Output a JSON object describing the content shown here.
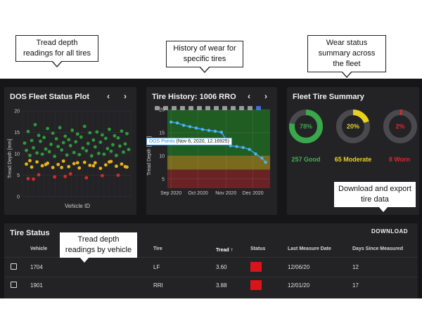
{
  "callouts": {
    "tread": "Tread depth readings for all tires",
    "history": "History of wear for specific tires",
    "summary": "Wear status summary across the fleet",
    "download": "Download and export tire data",
    "vehicle": "Tread depth readings by vehicle"
  },
  "fleet_plot": {
    "title": "DOS Fleet Status Plot",
    "prev": "‹",
    "next": "›",
    "ylabel": "Tread Depth [mm]",
    "xlabel": "Vehicle ID",
    "yticks": [
      "20",
      "15",
      "10",
      "5",
      "0"
    ]
  },
  "history": {
    "title": "Tire History: 1006 RRO",
    "prev": "‹",
    "next": "›",
    "ylabel": "Tread Depth [mm]",
    "yticks": [
      "20",
      "15",
      "10",
      "5"
    ],
    "xticks": [
      "Sep 2020",
      "Oct 2020",
      "Nov 2020",
      "Dec 2020"
    ],
    "tooltip_label": "DOS Points",
    "tooltip_value": "(Nov 6, 2020, 12.16925)",
    "toolbar_icons": [
      "camera-icon",
      "zoom-icon",
      "pan-icon",
      "lasso-icon",
      "box-select-icon",
      "zoom-in-icon",
      "zoom-out-icon",
      "autoscale-icon",
      "home-icon",
      "spike-icon",
      "hover-icon",
      "compare-icon",
      "logo-icon"
    ]
  },
  "summary": {
    "title": "Fleet Tire Summary",
    "rings": [
      {
        "pct": "78%",
        "fraction": 0.78,
        "color": "#3aa84a",
        "label": "257 Good",
        "label_color": "#3fb34f"
      },
      {
        "pct": "20%",
        "fraction": 0.2,
        "color": "#e9d21c",
        "label": "65 Moderate",
        "label_color": "#e8d323"
      },
      {
        "pct": "2%",
        "fraction": 0.02,
        "color": "#e0262b",
        "label": "8 Worn",
        "label_color": "#e0262b"
      }
    ]
  },
  "tire_status": {
    "title": "Tire Status",
    "download": "DOWNLOAD",
    "columns": [
      "Vehicle",
      "Tire",
      "Tread",
      "Status",
      "Last Measure Date",
      "Days Since Measured"
    ],
    "sort_icon": "↑",
    "rows": [
      {
        "vehicle": "1704",
        "tire": "LF",
        "tread": "3.60",
        "status_color": "#d9141b",
        "date": "12/06/20",
        "days": "12"
      },
      {
        "vehicle": "1901",
        "tire": "RRI",
        "tread": "3.88",
        "status_color": "#d9141b",
        "date": "12/01/20",
        "days": "17"
      }
    ]
  },
  "chart_data": [
    {
      "type": "scatter",
      "title": "DOS Fleet Status Plot",
      "xlabel": "Vehicle ID",
      "ylabel": "Tread Depth [mm]",
      "ylim": [
        0,
        20
      ],
      "yticks": [
        0,
        5,
        10,
        15,
        20
      ],
      "series": [
        {
          "color": "#2e9a3a",
          "x": [
            1,
            2,
            3,
            4,
            5,
            6,
            7,
            8,
            9,
            10,
            11,
            12,
            13,
            14,
            15,
            16,
            17,
            18,
            19,
            20,
            21,
            22,
            23,
            24,
            25,
            26,
            27,
            28,
            29,
            30,
            31,
            32,
            33,
            34,
            35,
            36,
            37,
            38,
            39,
            40,
            41,
            42,
            43,
            44,
            45,
            46,
            47,
            48,
            49,
            50,
            51,
            52,
            53,
            54,
            55,
            56,
            57,
            58,
            59,
            60
          ],
          "y": [
            12.5,
            10.8,
            15.2,
            9.6,
            13.1,
            11.4,
            16.8,
            10.2,
            14.3,
            12.9,
            9.9,
            13.8,
            11.1,
            15.9,
            10.5,
            12.2,
            14.8,
            9.4,
            13.5,
            11.7,
            16.1,
            10.9,
            12.6,
            14.1,
            9.7,
            13.3,
            11.9,
            15.5,
            10.3,
            12.8,
            14.6,
            9.8,
            13.9,
            11.3,
            16.4,
            10.7,
            12.4,
            14.9,
            9.5,
            13.2,
            11.6,
            15.1,
            10.1,
            12.7,
            14.4,
            9.9,
            13.6,
            11.2,
            15.7,
            10.6,
            12.1,
            14.2,
            9.6,
            13.7,
            11.8,
            15.3,
            10.4,
            12.3,
            14.7,
            11.0
          ]
        },
        {
          "color": "#e8b21b",
          "x": [
            2,
            5,
            8,
            11,
            14,
            17,
            20,
            23,
            26,
            29,
            32,
            35,
            38,
            41,
            44,
            47,
            50,
            53,
            56,
            59,
            4,
            13,
            22,
            31,
            40,
            49,
            58
          ],
          "y": [
            7.6,
            6.9,
            8.1,
            7.2,
            7.8,
            6.8,
            7.5,
            8.3,
            7.0,
            7.7,
            6.7,
            8.0,
            7.3,
            7.9,
            6.6,
            7.4,
            8.2,
            7.1,
            7.6,
            6.9,
            8.4,
            7.5,
            6.8,
            7.9,
            7.2,
            8.1,
            7.0
          ]
        },
        {
          "color": "#d82a2a",
          "x": [
            3,
            9,
            18,
            27,
            36,
            45,
            54,
            6,
            24
          ],
          "y": [
            4.2,
            5.1,
            4.6,
            5.3,
            4.4,
            4.9,
            5.0,
            4.1,
            4.7
          ]
        }
      ]
    },
    {
      "type": "line",
      "title": "Tire History: 1006 RRO",
      "ylabel": "Tread Depth [mm]",
      "xticks": [
        "Sep 2020",
        "Oct 2020",
        "Nov 2020",
        "Dec 2020"
      ],
      "ylim": [
        3,
        20
      ],
      "yticks": [
        5,
        10,
        15,
        20
      ],
      "bands": [
        {
          "from": 10,
          "to": 20,
          "color": "#1f5d23"
        },
        {
          "from": 7,
          "to": 10,
          "color": "#7a6a1d"
        },
        {
          "from": 3,
          "to": 7,
          "color": "#6a2324"
        }
      ],
      "series": [
        {
          "name": "DOS Points",
          "x": [
            "2020-09-01",
            "2020-09-08",
            "2020-09-15",
            "2020-09-22",
            "2020-09-29",
            "2020-10-06",
            "2020-10-13",
            "2020-10-20",
            "2020-10-27",
            "2020-11-03",
            "2020-11-06",
            "2020-11-13",
            "2020-11-20",
            "2020-11-27",
            "2020-12-04",
            "2020-12-11",
            "2020-12-15"
          ],
          "y": [
            17.3,
            17.1,
            16.6,
            16.3,
            16.0,
            15.7,
            15.5,
            15.3,
            15.1,
            12.9,
            12.17,
            12.0,
            11.8,
            11.4,
            10.4,
            9.5,
            8.6
          ]
        }
      ]
    },
    {
      "type": "pie",
      "title": "Fleet Tire Summary",
      "categories": [
        "Good",
        "Moderate",
        "Worn"
      ],
      "values": [
        257,
        65,
        8
      ],
      "percent": [
        78,
        20,
        2
      ]
    }
  ]
}
